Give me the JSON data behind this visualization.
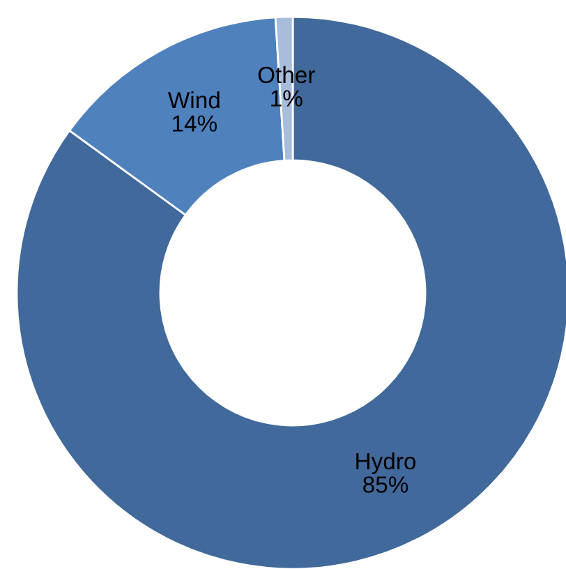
{
  "chart_data": {
    "type": "donut",
    "categories": [
      "Hydro",
      "Wind",
      "Other"
    ],
    "values": [
      85,
      14,
      1
    ],
    "value_labels": [
      "85%",
      "14%",
      "1%"
    ],
    "colors": [
      "#41699b",
      "#4f81bd",
      "#a8bcdc"
    ]
  }
}
